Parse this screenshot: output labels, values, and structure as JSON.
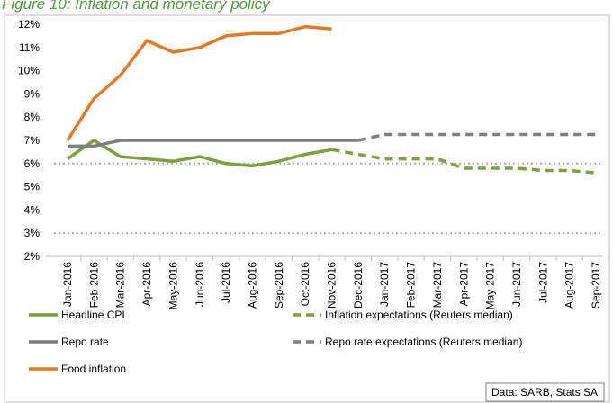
{
  "chart_data": {
    "type": "line",
    "title": "Figure 10: Inflation and monetary policy",
    "categories": [
      "Jan-2016",
      "Feb-2016",
      "Mar-2016",
      "Apr-2016",
      "May-2016",
      "Jun-2016",
      "Jul-2016",
      "Aug-2016",
      "Sep-2016",
      "Oct-2016",
      "Nov-2016",
      "Dec-2016",
      "Jan-2017",
      "Feb-2017",
      "Mar-2017",
      "Apr-2017",
      "May-2017",
      "Jun-2017",
      "Jul-2017",
      "Aug-2017",
      "Sep-2017"
    ],
    "series": [
      {
        "name": "Headline CPI",
        "color": "#77a33c",
        "style": "solid",
        "values": [
          6.2,
          7.0,
          6.3,
          6.2,
          6.1,
          6.3,
          6.0,
          5.9,
          6.1,
          6.4,
          6.6,
          null,
          null,
          null,
          null,
          null,
          null,
          null,
          null,
          null,
          null
        ]
      },
      {
        "name": "Inflation expectations (Reuters median)",
        "color": "#77a33c",
        "style": "dashed",
        "values": [
          null,
          null,
          null,
          null,
          null,
          null,
          null,
          null,
          null,
          null,
          6.6,
          6.4,
          6.2,
          6.2,
          6.2,
          5.8,
          5.8,
          5.8,
          5.7,
          5.7,
          5.6
        ]
      },
      {
        "name": "Repo rate",
        "color": "#7f7f7f",
        "style": "solid",
        "values": [
          6.75,
          6.75,
          7.0,
          7.0,
          7.0,
          7.0,
          7.0,
          7.0,
          7.0,
          7.0,
          7.0,
          7.0,
          null,
          null,
          null,
          null,
          null,
          null,
          null,
          null,
          null
        ]
      },
      {
        "name": "Repo rate expectations (Reuters median)",
        "color": "#7f7f7f",
        "style": "dashed",
        "values": [
          null,
          null,
          null,
          null,
          null,
          null,
          null,
          null,
          null,
          null,
          null,
          7.0,
          7.25,
          7.25,
          7.25,
          7.25,
          7.25,
          7.25,
          7.25,
          7.25,
          7.25
        ]
      },
      {
        "name": "Food inflation",
        "color": "#e87722",
        "style": "solid",
        "values": [
          7.0,
          8.8,
          9.8,
          11.3,
          10.8,
          11.0,
          11.5,
          11.6,
          11.6,
          11.9,
          11.8,
          null,
          null,
          null,
          null,
          null,
          null,
          null,
          null,
          null,
          null
        ]
      }
    ],
    "reference_lines": [
      3,
      6
    ],
    "reference_color": "#a6a6a6",
    "ylim": [
      2,
      12
    ],
    "yticks": [
      {
        "value": 2,
        "label": "2%"
      },
      {
        "value": 3,
        "label": "3%"
      },
      {
        "value": 4,
        "label": "4%"
      },
      {
        "value": 5,
        "label": "5%"
      },
      {
        "value": 6,
        "label": "6%"
      },
      {
        "value": 7,
        "label": "7%"
      },
      {
        "value": 8,
        "label": "8%"
      },
      {
        "value": 9,
        "label": "9%"
      },
      {
        "value": 10,
        "label": "10%"
      },
      {
        "value": 11,
        "label": "11%"
      },
      {
        "value": 12,
        "label": "12%"
      }
    ],
    "grid": false,
    "legend": "bottom",
    "source": "Data: SARB, Stats SA"
  }
}
